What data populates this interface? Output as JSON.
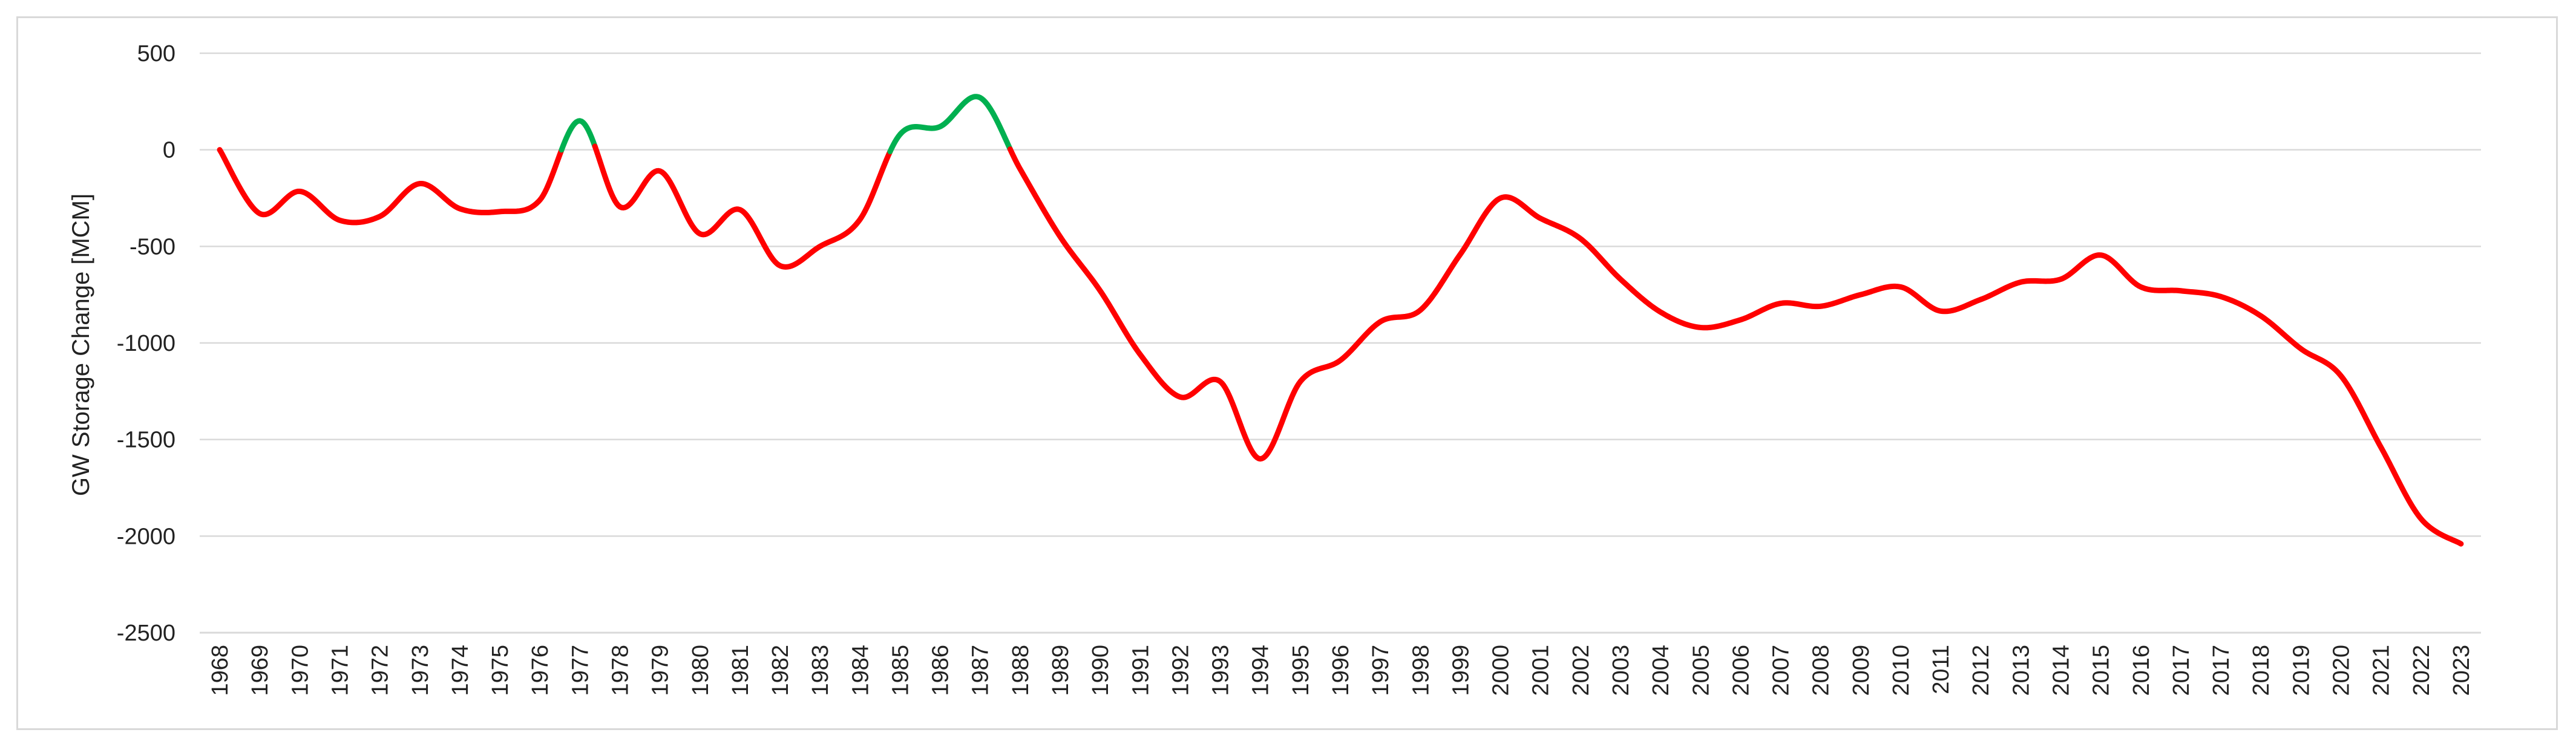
{
  "chart_data": {
    "type": "line",
    "ylabel": "GW Storage Change [MCM]",
    "ylim": [
      -2500,
      500
    ],
    "yticks": [
      500,
      0,
      -500,
      -1000,
      -1500,
      -2000,
      -2500
    ],
    "grid": true,
    "colors": {
      "negative": "#ff0000",
      "positive": "#00b050",
      "grid": "#d9d9d9"
    },
    "categories": [
      "1968",
      "1969",
      "1970",
      "1971",
      "1972",
      "1973",
      "1974",
      "1975",
      "1976",
      "1977",
      "1978",
      "1979",
      "1980",
      "1981",
      "1982",
      "1983",
      "1984",
      "1985",
      "1986",
      "1987",
      "1988",
      "1989",
      "1990",
      "1991",
      "1992",
      "1993",
      "1994",
      "1995",
      "1996",
      "1997",
      "1998",
      "1999",
      "2000",
      "2001",
      "2002",
      "2003",
      "2004",
      "2005",
      "2006",
      "2007",
      "2008",
      "2009",
      "2010",
      "2011",
      "2012",
      "2013",
      "2014",
      "2015",
      "2016",
      "2017",
      "2017",
      "2018",
      "2019",
      "2020",
      "2021",
      "2022",
      "2023"
    ],
    "series": [
      {
        "values": [
          0,
          -330,
          -215,
          -365,
          -345,
          -175,
          -305,
          -320,
          -260,
          150,
          -295,
          -110,
          -435,
          -310,
          -600,
          -500,
          -360,
          80,
          120,
          270,
          -100,
          -450,
          -730,
          -1060,
          -1280,
          -1200,
          -1600,
          -1200,
          -1090,
          -890,
          -830,
          -540,
          -250,
          -355,
          -460,
          -670,
          -840,
          -920,
          -880,
          -795,
          -810,
          -750,
          -710,
          -835,
          -775,
          -685,
          -670,
          -545,
          -710,
          -730,
          -760,
          -860,
          -1030,
          -1170,
          -1540,
          -1910,
          -2040
        ]
      }
    ]
  }
}
